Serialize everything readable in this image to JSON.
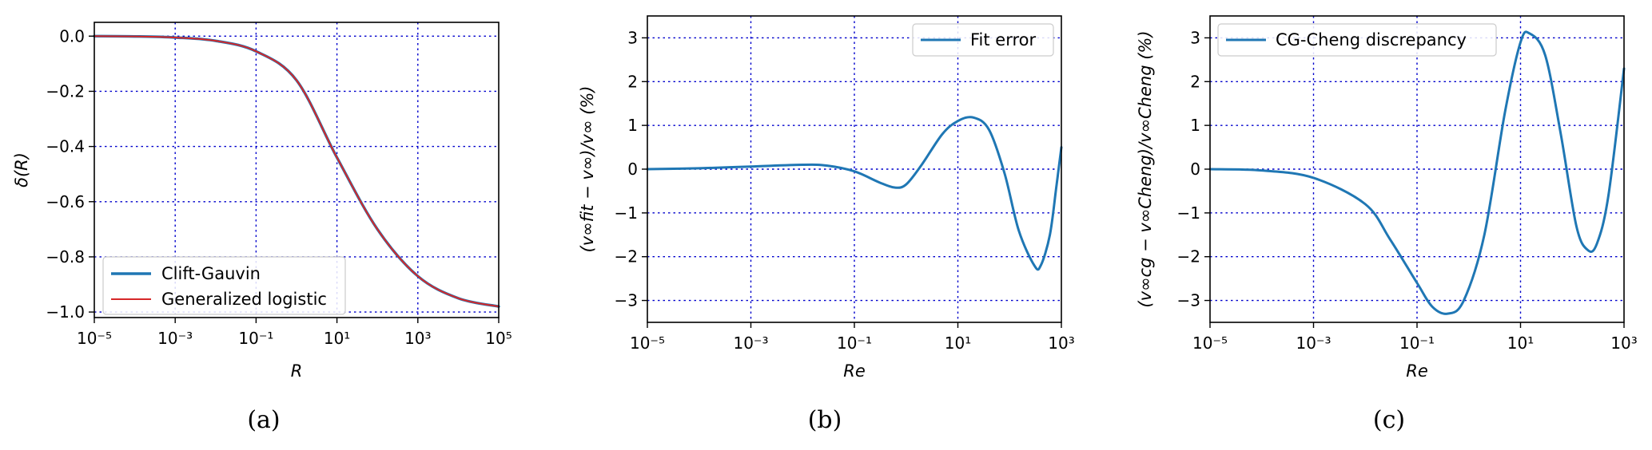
{
  "chart_data": [
    {
      "type": "line",
      "id": "a",
      "title": "",
      "caption": "(a)",
      "xlabel": "R",
      "ylabel": "δ(R)",
      "xscale": "log",
      "xlim": [
        -5,
        5
      ],
      "ylim": [
        -1.02,
        0.05
      ],
      "xticks": [
        -5,
        -3,
        -1,
        1,
        3,
        5
      ],
      "yticks": [
        0.0,
        -0.2,
        -0.4,
        -0.6,
        -0.8,
        -1.0
      ],
      "ytick_labels": [
        "0.0",
        "−0.2",
        "−0.4",
        "−0.6",
        "−0.8",
        "−1.0"
      ],
      "grid": true,
      "legend_position": "lower-left",
      "series": [
        {
          "name": "Clift-Gauvin",
          "color": "#1f77b4",
          "x": [
            1e-05,
            0.0001,
            0.001,
            0.01,
            0.1,
            1,
            10,
            100,
            1000.0,
            10000.0,
            100000.0
          ],
          "y": [
            0.0,
            -0.001,
            -0.005,
            -0.017,
            -0.055,
            -0.16,
            -0.44,
            -0.7,
            -0.87,
            -0.95,
            -0.98
          ]
        },
        {
          "name": "Generalized logistic",
          "color": "#d62728",
          "x": [
            1e-05,
            0.0001,
            0.001,
            0.01,
            0.1,
            1,
            10,
            100,
            1000.0,
            10000.0,
            100000.0
          ],
          "y": [
            0.0,
            -0.001,
            -0.005,
            -0.017,
            -0.055,
            -0.16,
            -0.44,
            -0.7,
            -0.87,
            -0.95,
            -0.98
          ]
        }
      ]
    },
    {
      "type": "line",
      "id": "b",
      "title": "",
      "caption": "(b)",
      "xlabel": "Re",
      "ylabel": "(v∞fit − v∞)/v∞ (%)",
      "xscale": "log",
      "xlim": [
        -5,
        3
      ],
      "ylim": [
        -3.5,
        3.5
      ],
      "xticks": [
        -5,
        -3,
        -1,
        1,
        3
      ],
      "yticks": [
        3,
        2,
        1,
        0,
        -1,
        -2,
        -3
      ],
      "ytick_labels": [
        "3",
        "2",
        "1",
        "0",
        "−1",
        "−2",
        "−3"
      ],
      "grid": true,
      "legend_position": "top-right",
      "series": [
        {
          "name": "Fit error",
          "color": "#1f77b4",
          "x": [
            1e-05,
            0.0001,
            0.001,
            0.01,
            0.03,
            0.1,
            0.3,
            0.6,
            1,
            2,
            5,
            10,
            20,
            40,
            80,
            150,
            300,
            400,
            600,
            800,
            1000
          ],
          "y": [
            0.0,
            0.02,
            0.06,
            0.1,
            0.08,
            -0.05,
            -0.3,
            -0.42,
            -0.35,
            0.1,
            0.8,
            1.1,
            1.18,
            0.9,
            -0.1,
            -1.4,
            -2.2,
            -2.2,
            -1.5,
            -0.4,
            0.5
          ]
        }
      ]
    },
    {
      "type": "line",
      "id": "c",
      "title": "",
      "caption": "(c)",
      "xlabel": "Re",
      "ylabel": "(v∞cg − v∞Cheng)/v∞Cheng (%)",
      "xscale": "log",
      "xlim": [
        -5,
        3
      ],
      "ylim": [
        -3.5,
        3.5
      ],
      "xticks": [
        -5,
        -3,
        -1,
        1,
        3
      ],
      "yticks": [
        3,
        2,
        1,
        0,
        -1,
        -2,
        -3
      ],
      "ytick_labels": [
        "3",
        "2",
        "1",
        "0",
        "−1",
        "−2",
        "−3"
      ],
      "grid": true,
      "legend_position": "top-left",
      "series": [
        {
          "name": "CG-Cheng discrepancy",
          "color": "#1f77b4",
          "x": [
            1e-05,
            0.0001,
            0.001,
            0.01,
            0.03,
            0.1,
            0.2,
            0.4,
            0.8,
            2,
            5,
            10,
            15,
            30,
            60,
            120,
            200,
            300,
            500,
            1000
          ],
          "y": [
            0.0,
            -0.03,
            -0.2,
            -0.8,
            -1.6,
            -2.6,
            -3.15,
            -3.3,
            -3.0,
            -1.5,
            1.3,
            2.9,
            3.1,
            2.6,
            0.8,
            -1.3,
            -1.85,
            -1.7,
            -0.6,
            2.3
          ]
        }
      ]
    }
  ]
}
